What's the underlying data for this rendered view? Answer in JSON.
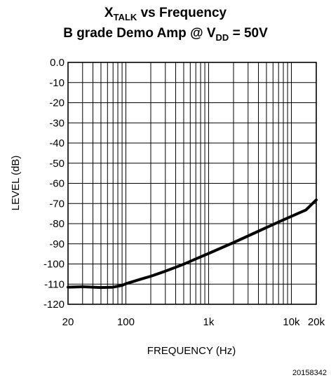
{
  "chart_data": {
    "type": "line",
    "title": {
      "line1_main": "X",
      "line1_sub": "TALK",
      "line1_rest": " vs Frequency",
      "line2_main": "B grade Demo Amp @ V",
      "line2_sub": "DD",
      "line2_rest": " = 50V"
    },
    "xlabel": "FREQUENCY (Hz)",
    "ylabel": "LEVEL (dB)",
    "x_scale": "log",
    "xlim": [
      20,
      20000
    ],
    "ylim": [
      -120,
      0
    ],
    "x_ticks": [
      {
        "value": 20,
        "label": "20"
      },
      {
        "value": 100,
        "label": "100"
      },
      {
        "value": 1000,
        "label": "1k"
      },
      {
        "value": 10000,
        "label": "10k"
      },
      {
        "value": 20000,
        "label": "20k"
      }
    ],
    "y_ticks": [
      {
        "value": 0,
        "label": "0.0"
      },
      {
        "value": -10,
        "label": "-10"
      },
      {
        "value": -20,
        "label": "-20"
      },
      {
        "value": -30,
        "label": "-30"
      },
      {
        "value": -40,
        "label": "-40"
      },
      {
        "value": -50,
        "label": "-50"
      },
      {
        "value": -60,
        "label": "-60"
      },
      {
        "value": -70,
        "label": "-70"
      },
      {
        "value": -80,
        "label": "-80"
      },
      {
        "value": -90,
        "label": "-90"
      },
      {
        "value": -100,
        "label": "-100"
      },
      {
        "value": -110,
        "label": "-110"
      },
      {
        "value": -120,
        "label": "-120"
      }
    ],
    "grid": true,
    "series": [
      {
        "x": [
          20,
          30,
          50,
          70,
          90,
          100,
          150,
          200,
          300,
          500,
          700,
          1000,
          2000,
          3000,
          5000,
          7000,
          10000,
          15000,
          20000
        ],
        "y": [
          -111.5,
          -111.3,
          -111.7,
          -111.5,
          -110.6,
          -109.8,
          -107.6,
          -106.1,
          -103.6,
          -100.1,
          -97.5,
          -94.8,
          -89.4,
          -86.1,
          -81.9,
          -79.2,
          -76.4,
          -73.2,
          -68.2
        ]
      }
    ],
    "figure_id": "20158342"
  }
}
